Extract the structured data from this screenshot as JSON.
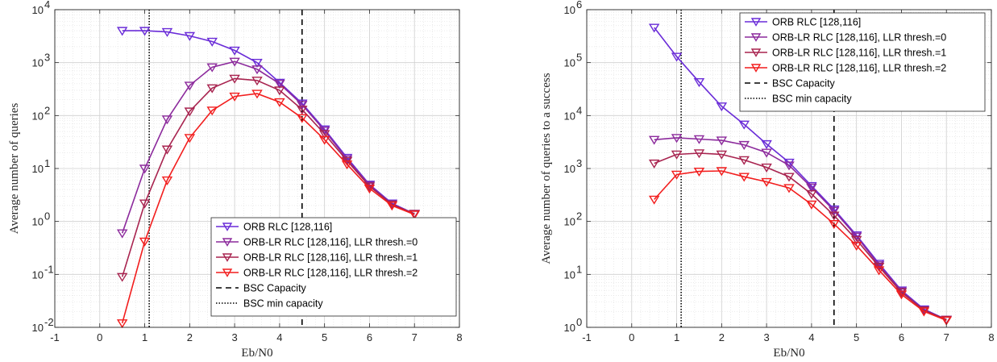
{
  "chart_data": [
    {
      "type": "line",
      "xlabel": "Eb/N0",
      "ylabel": "Average number of queries",
      "yscale": "log",
      "xlim": [
        -1,
        8
      ],
      "ylim": [
        0.01,
        10000
      ],
      "xticks": [
        "-1",
        "0",
        "1",
        "2",
        "3",
        "4",
        "5",
        "6",
        "7",
        "8"
      ],
      "yticks": [
        {
          "base": "10",
          "exp": "-2"
        },
        {
          "base": "10",
          "exp": "-1"
        },
        {
          "base": "10",
          "exp": "0"
        },
        {
          "base": "10",
          "exp": "1"
        },
        {
          "base": "10",
          "exp": "2"
        },
        {
          "base": "10",
          "exp": "3"
        },
        {
          "base": "10",
          "exp": "4"
        }
      ],
      "grid": true,
      "minor_grid": true,
      "legend_position": "bottom-right",
      "marker": "down-triangle",
      "series": [
        {
          "name": "ORB RLC [128,116]",
          "color": "#6a2cd8",
          "x": [
            0.5,
            1,
            1.5,
            2,
            2.5,
            3,
            3.5,
            4,
            4.5,
            5,
            5.5,
            6,
            6.5,
            7
          ],
          "y": [
            4000,
            4000,
            3800,
            3200,
            2500,
            1700,
            1000,
            420,
            170,
            55,
            16,
            5,
            2.2,
            1.4
          ]
        },
        {
          "name": "ORB-LR RLC [128,116], LLR thresh.=0",
          "color": "#8c2a9c",
          "x": [
            0.5,
            1,
            1.5,
            2,
            2.5,
            3,
            3.5,
            4,
            4.5,
            5,
            5.5,
            6,
            6.5,
            7
          ],
          "y": [
            0.6,
            10,
            85,
            370,
            820,
            1050,
            750,
            400,
            160,
            52,
            15,
            4.8,
            2.1,
            1.4
          ]
        },
        {
          "name": "ORB-LR RLC [128,116], LLR thresh.=1",
          "color": "#a8234f",
          "x": [
            0.5,
            1,
            1.5,
            2,
            2.5,
            3,
            3.5,
            4,
            4.5,
            5,
            5.5,
            6,
            6.5,
            7
          ],
          "y": [
            0.09,
            2.2,
            23,
            120,
            330,
            500,
            460,
            300,
            130,
            45,
            14,
            4.6,
            2.1,
            1.4
          ]
        },
        {
          "name": "ORB-LR RLC [128,116], LLR thresh.=2",
          "color": "#f21d1d",
          "x": [
            0.5,
            1,
            1.5,
            2,
            2.5,
            3,
            3.5,
            4,
            4.5,
            5,
            5.5,
            6,
            6.5,
            7
          ],
          "y": [
            0.012,
            0.42,
            6,
            38,
            125,
            230,
            260,
            180,
            90,
            35,
            12,
            4.2,
            2,
            1.35
          ]
        }
      ],
      "reference_lines": [
        {
          "name": "BSC Capacity",
          "x": 4.5,
          "style": "dashed"
        },
        {
          "name": "BSC min capacity",
          "x": 1.1,
          "style": "dotted"
        }
      ]
    },
    {
      "type": "line",
      "xlabel": "Eb/N0",
      "ylabel": "Average number of queries to a success",
      "yscale": "log",
      "xlim": [
        -1,
        8
      ],
      "ylim": [
        1,
        1000000
      ],
      "xticks": [
        "-1",
        "0",
        "1",
        "2",
        "3",
        "4",
        "5",
        "6",
        "7",
        "8"
      ],
      "yticks": [
        {
          "base": "10",
          "exp": "0"
        },
        {
          "base": "10",
          "exp": "1"
        },
        {
          "base": "10",
          "exp": "2"
        },
        {
          "base": "10",
          "exp": "3"
        },
        {
          "base": "10",
          "exp": "4"
        },
        {
          "base": "10",
          "exp": "5"
        },
        {
          "base": "10",
          "exp": "6"
        }
      ],
      "grid": true,
      "minor_grid": true,
      "legend_position": "top-right",
      "marker": "down-triangle",
      "series": [
        {
          "name": "ORB RLC [128,116]",
          "color": "#6a2cd8",
          "x": [
            0.5,
            1,
            1.5,
            2,
            2.5,
            3,
            3.5,
            4,
            4.5,
            5,
            5.5,
            6,
            6.5,
            7
          ],
          "y": [
            460000,
            130000,
            43000,
            15000,
            6800,
            2900,
            1300,
            470,
            170,
            55,
            16,
            5,
            2.2,
            1.4
          ]
        },
        {
          "name": "ORB-LR RLC [128,116], LLR thresh.=0",
          "color": "#8c2a9c",
          "x": [
            0.5,
            1,
            1.5,
            2,
            2.5,
            3,
            3.5,
            4,
            4.5,
            5,
            5.5,
            6,
            6.5,
            7
          ],
          "y": [
            3500,
            3800,
            3600,
            3400,
            2800,
            2000,
            1150,
            440,
            160,
            52,
            15,
            4.8,
            2.1,
            1.4
          ]
        },
        {
          "name": "ORB-LR RLC [128,116], LLR thresh.=1",
          "color": "#a8234f",
          "x": [
            0.5,
            1,
            1.5,
            2,
            2.5,
            3,
            3.5,
            4,
            4.5,
            5,
            5.5,
            6,
            6.5,
            7
          ],
          "y": [
            1250,
            1850,
            1950,
            1850,
            1450,
            1050,
            700,
            330,
            130,
            45,
            14,
            4.6,
            2.1,
            1.4
          ]
        },
        {
          "name": "ORB-LR RLC [128,116], LLR thresh.=2",
          "color": "#f21d1d",
          "x": [
            0.5,
            1,
            1.5,
            2,
            2.5,
            3,
            3.5,
            4,
            4.5,
            5,
            5.5,
            6,
            6.5,
            7
          ],
          "y": [
            260,
            770,
            880,
            900,
            700,
            560,
            430,
            210,
            90,
            35,
            12,
            4.2,
            2,
            1.35
          ]
        }
      ],
      "reference_lines": [
        {
          "name": "BSC Capacity",
          "x": 4.5,
          "style": "dashed"
        },
        {
          "name": "BSC min capacity",
          "x": 1.1,
          "style": "dotted"
        }
      ]
    }
  ]
}
